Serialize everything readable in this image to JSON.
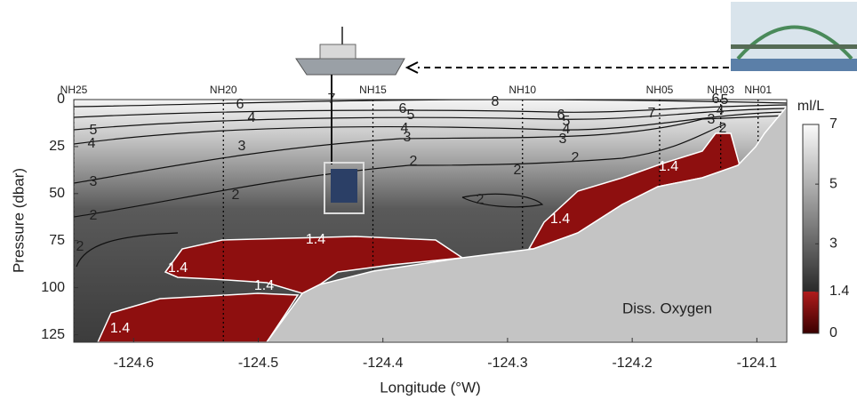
{
  "chart_data": {
    "type": "contour",
    "annotation": "Diss. Oxygen",
    "xlabel": "Longitude (°W)",
    "ylabel": "Pressure (dbar)",
    "xlim": [
      -124.648,
      -124.076
    ],
    "xticks": [
      -124.6,
      -124.5,
      -124.4,
      -124.3,
      -124.2,
      -124.1
    ],
    "ylim": [
      0,
      129
    ],
    "yticks": [
      0,
      25,
      50,
      75,
      100,
      125
    ],
    "y_inverted": true,
    "stations": {
      "names": [
        "NH25",
        "NH20",
        "NH15",
        "NH10",
        "NH05",
        "NH03",
        "NH01"
      ],
      "x": [
        -124.648,
        -124.528,
        -124.408,
        -124.288,
        -124.178,
        -124.129,
        -124.099
      ]
    },
    "contour_levels": [
      1.4,
      2,
      3,
      4,
      5,
      6,
      7,
      8
    ],
    "colorbar": {
      "label": "ml/L",
      "lim": [
        0,
        7
      ],
      "ticks": [
        0,
        1.4,
        3,
        5,
        7
      ],
      "hypoxic_threshold": 1.4,
      "hypoxic_color": "#8e0f0f"
    }
  }
}
